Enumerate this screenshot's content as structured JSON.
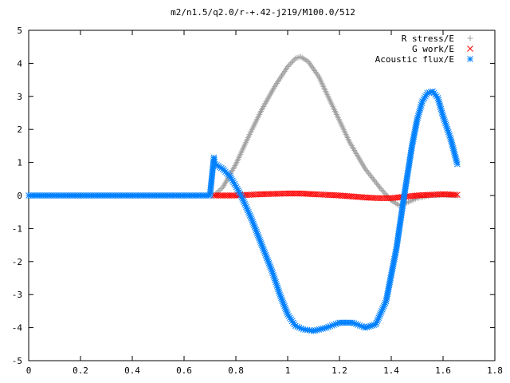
{
  "chart_data": {
    "type": "scatter",
    "title": "m2/n1.5/q2.0/r-+.42-j219/M100.0/512",
    "xlabel": "",
    "ylabel": "",
    "xlim": [
      0,
      1.8
    ],
    "ylim": [
      -5,
      5
    ],
    "xticks": [
      "0",
      "0.2",
      "0.4",
      "0.6",
      "0.8",
      "1",
      "1.2",
      "1.4",
      "1.6",
      "1.8"
    ],
    "yticks": [
      "5",
      "4",
      "3",
      "2",
      "1",
      "0",
      "-1",
      "-2",
      "-3",
      "-4",
      "-5"
    ],
    "grid": false,
    "legend_position": "top-right",
    "series": [
      {
        "name": "R stress/E",
        "marker": "plus",
        "color": "#a0a0a0",
        "x": [
          0.715,
          0.75,
          0.8,
          0.85,
          0.9,
          0.95,
          1.0,
          1.03,
          1.05,
          1.08,
          1.12,
          1.18,
          1.24,
          1.3,
          1.36,
          1.4,
          1.43,
          1.46,
          1.5,
          1.55,
          1.6,
          1.655
        ],
        "y": [
          0.0,
          0.25,
          0.95,
          1.8,
          2.6,
          3.3,
          3.9,
          4.15,
          4.2,
          4.05,
          3.6,
          2.6,
          1.6,
          0.8,
          0.2,
          -0.15,
          -0.3,
          -0.22,
          -0.08,
          0.0,
          0.02,
          0.0
        ]
      },
      {
        "name": "G work/E",
        "marker": "x",
        "color": "#ff0000",
        "x": [
          0.715,
          0.8,
          0.9,
          1.0,
          1.05,
          1.1,
          1.2,
          1.3,
          1.35,
          1.4,
          1.45,
          1.5,
          1.55,
          1.6,
          1.655
        ],
        "y": [
          0.0,
          0.0,
          0.04,
          0.06,
          0.06,
          0.04,
          0.0,
          -0.06,
          -0.08,
          -0.08,
          -0.04,
          0.0,
          0.02,
          0.04,
          0.02
        ]
      },
      {
        "name": "Acoustic flux/E",
        "marker": "star",
        "color": "#0080ff",
        "x": [
          0.0,
          0.1,
          0.2,
          0.3,
          0.4,
          0.5,
          0.6,
          0.7,
          0.715,
          0.72,
          0.75,
          0.78,
          0.82,
          0.86,
          0.9,
          0.94,
          0.97,
          1.0,
          1.03,
          1.06,
          1.1,
          1.15,
          1.2,
          1.25,
          1.3,
          1.34,
          1.38,
          1.42,
          1.45,
          1.48,
          1.5,
          1.52,
          1.54,
          1.56,
          1.58,
          1.6,
          1.63,
          1.655
        ],
        "y": [
          0.0,
          0.0,
          0.0,
          0.0,
          0.0,
          0.0,
          0.0,
          0.0,
          1.15,
          0.95,
          0.8,
          0.55,
          0.0,
          -0.7,
          -1.5,
          -2.3,
          -3.0,
          -3.6,
          -3.95,
          -4.05,
          -4.1,
          -4.0,
          -3.85,
          -3.85,
          -4.0,
          -3.9,
          -3.2,
          -1.6,
          0.0,
          1.5,
          2.3,
          2.85,
          3.1,
          3.15,
          2.95,
          2.4,
          1.7,
          0.95
        ]
      }
    ]
  }
}
